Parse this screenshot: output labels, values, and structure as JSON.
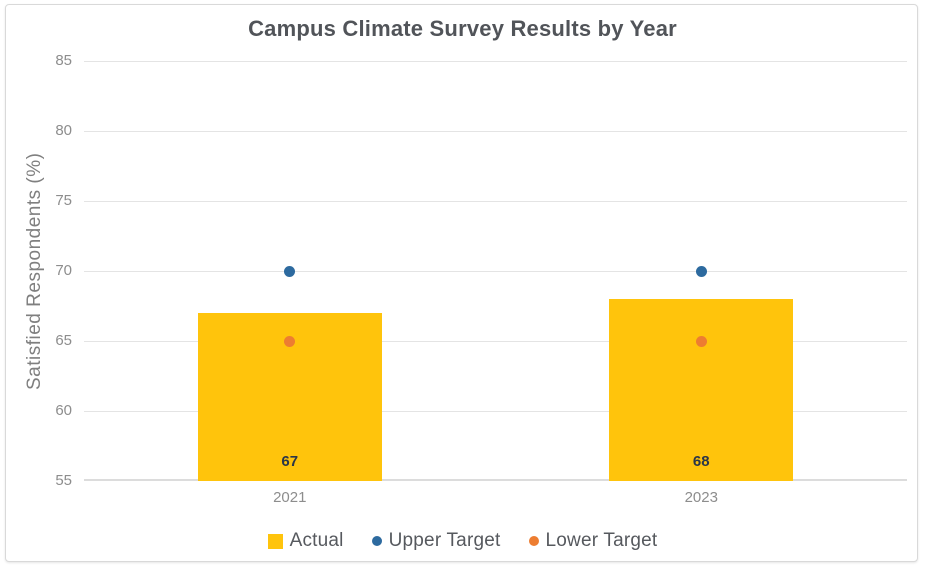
{
  "chart_data": {
    "type": "bar",
    "title": "Campus Climate Survey Results by Year",
    "xlabel": "",
    "ylabel": "Satisfied Respondents (%)",
    "categories": [
      "2021",
      "2023"
    ],
    "series": [
      {
        "name": "Actual",
        "mark": "bar",
        "color": "#FFC40C",
        "values": [
          67,
          68
        ]
      },
      {
        "name": "Upper Target",
        "mark": "point",
        "color": "#2D6A9F",
        "values": [
          70,
          70
        ]
      },
      {
        "name": "Lower Target",
        "mark": "point",
        "color": "#ED7D31",
        "values": [
          65,
          65
        ]
      }
    ],
    "ylim": [
      55,
      85
    ],
    "yticks": [
      85,
      80,
      75,
      70,
      65,
      60,
      55
    ],
    "grid": true,
    "legend_position": "bottom",
    "bar_value_labels_shown": true
  },
  "colors": {
    "actual_bar": "#FFC40C",
    "upper_target": "#2D6A9F",
    "lower_target": "#ED7D31",
    "title_text": "#515459",
    "axis_text": "#8D8D8D",
    "bar_label_text": "#2B3648",
    "gridline": "#E4E4E4",
    "card_border": "#D9D9D9"
  }
}
